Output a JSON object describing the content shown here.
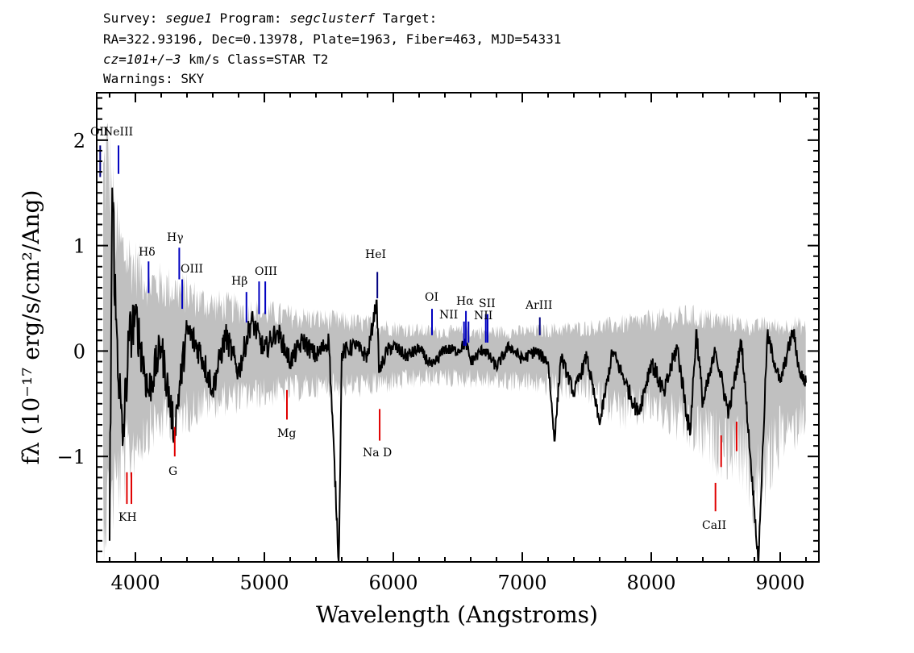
{
  "header": {
    "line1": {
      "t1": "Survey: ",
      "survey": "segue1",
      "t2": " Program: ",
      "program": "segclusterf",
      "t3": " Target:"
    },
    "line2": "RA=322.93196, Dec=0.13978, Plate=1963, Fiber=463, MJD=54331",
    "line3": {
      "cz": "cz=101+/−3",
      "rest": " km/s Class=STAR T2"
    },
    "line4": "Warnings: SKY"
  },
  "chart_data": {
    "type": "line",
    "xlabel": "Wavelength (Angstroms)",
    "ylabel": "fλ (10⁻¹⁷ erg/s/cm²/Ang)",
    "xlim": [
      3700,
      9300
    ],
    "ylim": [
      -2.0,
      2.45
    ],
    "x_ticks": [
      4000,
      5000,
      6000,
      7000,
      8000,
      9000
    ],
    "x_tick_labels": [
      "4000",
      "5000",
      "6000",
      "7000",
      "8000",
      "9000"
    ],
    "y_ticks": [
      -1,
      0,
      1,
      2
    ],
    "y_tick_labels": [
      "−1",
      "0",
      "1",
      "2"
    ],
    "grid": false,
    "series": [
      {
        "color": "#000000",
        "x": [
          3800,
          3820,
          3850,
          3900,
          3950,
          4000,
          4100,
          4200,
          4300,
          4400,
          4500,
          4600,
          4700,
          4800,
          4900,
          5000,
          5100,
          5200,
          5300,
          5400,
          5500,
          5577,
          5600,
          5700,
          5800,
          5870,
          5890,
          5950,
          6000,
          6100,
          6200,
          6300,
          6400,
          6500,
          6563,
          6600,
          6700,
          6800,
          6900,
          7000,
          7100,
          7200,
          7250,
          7300,
          7400,
          7500,
          7600,
          7700,
          7800,
          7900,
          8000,
          8100,
          8200,
          8300,
          8350,
          8400,
          8500,
          8600,
          8700,
          8800,
          8830,
          8900,
          9000,
          9100,
          9150,
          9200
        ],
        "y": [
          -1.8,
          1.55,
          0.3,
          -0.9,
          0.1,
          0.35,
          -0.4,
          0.05,
          -0.75,
          0.2,
          0.0,
          -0.35,
          0.15,
          -0.2,
          0.3,
          0.0,
          0.2,
          -0.1,
          0.1,
          -0.05,
          0.1,
          -2.0,
          -0.02,
          0.05,
          -0.05,
          0.48,
          -0.2,
          0.0,
          0.05,
          -0.05,
          0.02,
          -0.15,
          0.02,
          0.0,
          0.08,
          -0.1,
          0.02,
          -0.15,
          0.05,
          -0.08,
          0.0,
          -0.1,
          -0.85,
          -0.05,
          -0.4,
          -0.05,
          -0.7,
          0.0,
          -0.3,
          -0.6,
          -0.1,
          -0.4,
          0.05,
          -0.8,
          0.2,
          -0.5,
          0.0,
          -0.6,
          0.1,
          -1.5,
          -2.0,
          0.15,
          -0.3,
          0.2,
          -0.2,
          -0.3
        ]
      },
      {
        "color": "#c0c0c0",
        "x": [
          3750,
          3780,
          3800,
          3850,
          3900,
          4000,
          4100,
          4200,
          4300,
          4400,
          4500,
          4600,
          4800,
          5000,
          5200,
          5500,
          5800,
          6000,
          6300,
          6500,
          7000,
          7500,
          7800,
          8000,
          8300,
          8500,
          8700,
          8800,
          8900,
          9000,
          9100,
          9200
        ],
        "upper": [
          2.2,
          2.5,
          2.3,
          1.5,
          1.3,
          1.1,
          0.9,
          0.85,
          0.8,
          0.75,
          0.65,
          0.6,
          0.55,
          0.5,
          0.45,
          0.4,
          0.35,
          0.3,
          0.25,
          0.25,
          0.25,
          0.3,
          0.35,
          0.4,
          0.45,
          0.4,
          0.35,
          0.3,
          0.35,
          0.3,
          0.35,
          0.3
        ],
        "lower": [
          -2.0,
          -2.0,
          -2.0,
          -1.7,
          -1.5,
          -1.2,
          -1.0,
          -0.9,
          -0.85,
          -0.8,
          -0.7,
          -0.65,
          -0.6,
          -0.55,
          -0.5,
          -0.45,
          -0.45,
          -0.4,
          -0.35,
          -0.35,
          -0.4,
          -0.5,
          -0.8,
          -0.7,
          -1.0,
          -1.2,
          -1.3,
          -1.8,
          -1.5,
          -1.1,
          -1.0,
          -0.8
        ]
      }
    ],
    "emission_lines": [
      {
        "name": "OII",
        "wave": 3727,
        "color": "#000080"
      },
      {
        "name": "NeIII",
        "wave": 3869,
        "color": "#0000c0"
      },
      {
        "name": "Hδ",
        "wave": 4102,
        "color": "#0000c0"
      },
      {
        "name": "Hγ",
        "wave": 4340,
        "color": "#0000c0"
      },
      {
        "name": "OIII",
        "wave": 4363,
        "color": "#0000c0"
      },
      {
        "name": "Hβ",
        "wave": 4861,
        "color": "#0000c0"
      },
      {
        "name": "OIII",
        "wave": 4959,
        "color": "#0000c0"
      },
      {
        "name": "OIII",
        "wave": 5007,
        "color": "#0000c0"
      },
      {
        "name": "HeI",
        "wave": 5876,
        "color": "#000080"
      },
      {
        "name": "OI",
        "wave": 6300,
        "color": "#0000c0"
      },
      {
        "name": "NII",
        "wave": 6548,
        "color": "#0000c0"
      },
      {
        "name": "Hα",
        "wave": 6563,
        "color": "#0000c0"
      },
      {
        "name": "NII",
        "wave": 6583,
        "color": "#0000c0"
      },
      {
        "name": "SII",
        "wave": 6717,
        "color": "#0000c0"
      },
      {
        "name": "SII",
        "wave": 6731,
        "color": "#0000c0"
      },
      {
        "name": "ArIII",
        "wave": 7136,
        "color": "#000080"
      }
    ],
    "absorption_lines": [
      {
        "name": "K",
        "wave": 3934,
        "color": "#e00000"
      },
      {
        "name": "H",
        "wave": 3969,
        "color": "#e00000"
      },
      {
        "name": "G",
        "wave": 4305,
        "color": "#e00000"
      },
      {
        "name": "Mg",
        "wave": 5175,
        "color": "#e00000"
      },
      {
        "name": "Na D",
        "wave": 5894,
        "color": "#e00000"
      },
      {
        "name": "CaII",
        "wave": 8498,
        "color": "#e00000"
      },
      {
        "name": "CaII",
        "wave": 8542,
        "color": "#e00000"
      },
      {
        "name": "CaII",
        "wave": 8662,
        "color": "#e00000"
      }
    ],
    "line_labels": [
      {
        "id": "OII",
        "text": "OII"
      },
      {
        "id": "NeIII",
        "text": "NeIII"
      },
      {
        "id": "Hd",
        "text": "Hδ"
      },
      {
        "id": "Hg",
        "text": "Hγ"
      },
      {
        "id": "OIII_a",
        "text": "OIII"
      },
      {
        "id": "Hb",
        "text": "Hβ"
      },
      {
        "id": "OIII_b",
        "text": "OIII"
      },
      {
        "id": "HeI",
        "text": "HeI"
      },
      {
        "id": "OI",
        "text": "OI"
      },
      {
        "id": "NII_a",
        "text": "NII"
      },
      {
        "id": "Ha",
        "text": "Hα"
      },
      {
        "id": "NII_b",
        "text": "NII"
      },
      {
        "id": "SII",
        "text": "SII"
      },
      {
        "id": "ArIII",
        "text": "ArIII"
      },
      {
        "id": "KH",
        "text": "KH"
      },
      {
        "id": "G",
        "text": "G"
      },
      {
        "id": "Mg",
        "text": "Mg"
      },
      {
        "id": "NaD",
        "text": "Na D"
      },
      {
        "id": "CaII",
        "text": "CaII"
      }
    ]
  }
}
